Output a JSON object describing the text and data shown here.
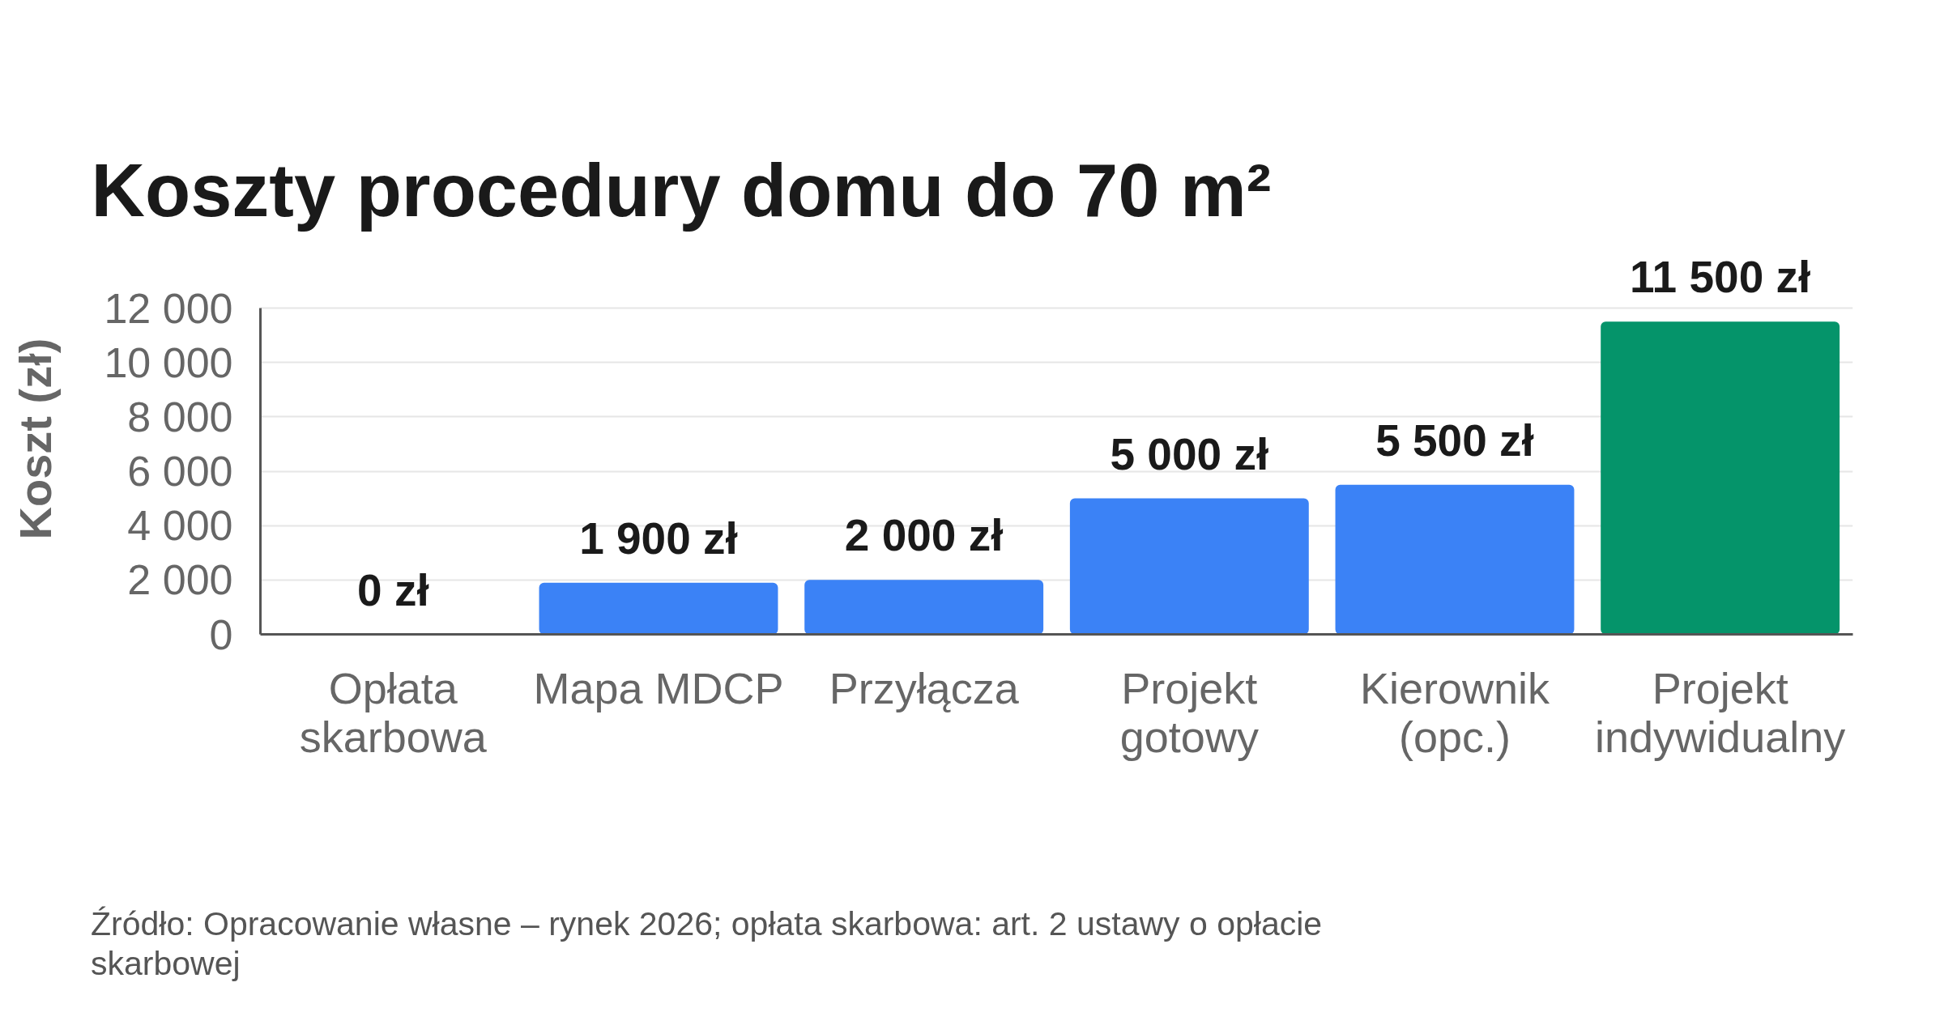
{
  "chart_data": {
    "type": "bar",
    "title": "Koszty procedury domu do 70 m²",
    "ylabel": "Koszt (zł)",
    "categories": [
      "Opłata skarbowa",
      "Mapa MDCP",
      "Przyłącza",
      "Projekt gotowy",
      "Kierownik (opc.)",
      "Projekt indywidualny"
    ],
    "values": [
      0,
      1900,
      2000,
      5000,
      5500,
      11500
    ],
    "colors": [
      "#3b82f6",
      "#3b82f6",
      "#3b82f6",
      "#3b82f6",
      "#3b82f6",
      "#05946a"
    ],
    "value_labels": [
      "0 zł",
      "1 900 zł",
      "2 000 zł",
      "5 000 zł",
      "5 500 zł",
      "11 500 zł"
    ],
    "ylim": [
      0,
      12000
    ],
    "yticks": [
      0,
      {
        "value": 2000,
        "label": "2 000"
      },
      {
        "value": 4000,
        "label": "4 000"
      },
      {
        "value": 6000,
        "label": "6 000"
      },
      {
        "value": 8000,
        "label": "8 000"
      },
      {
        "value": 10000,
        "label": "10 000"
      },
      {
        "value": 12000,
        "label": "12 000"
      }
    ],
    "grid": "y",
    "annotations": [
      "Źródło: Opracowanie własne – rynek 2026; opłata skarbowa: art. 2 ustawy o opłacie skarbowej"
    ]
  }
}
